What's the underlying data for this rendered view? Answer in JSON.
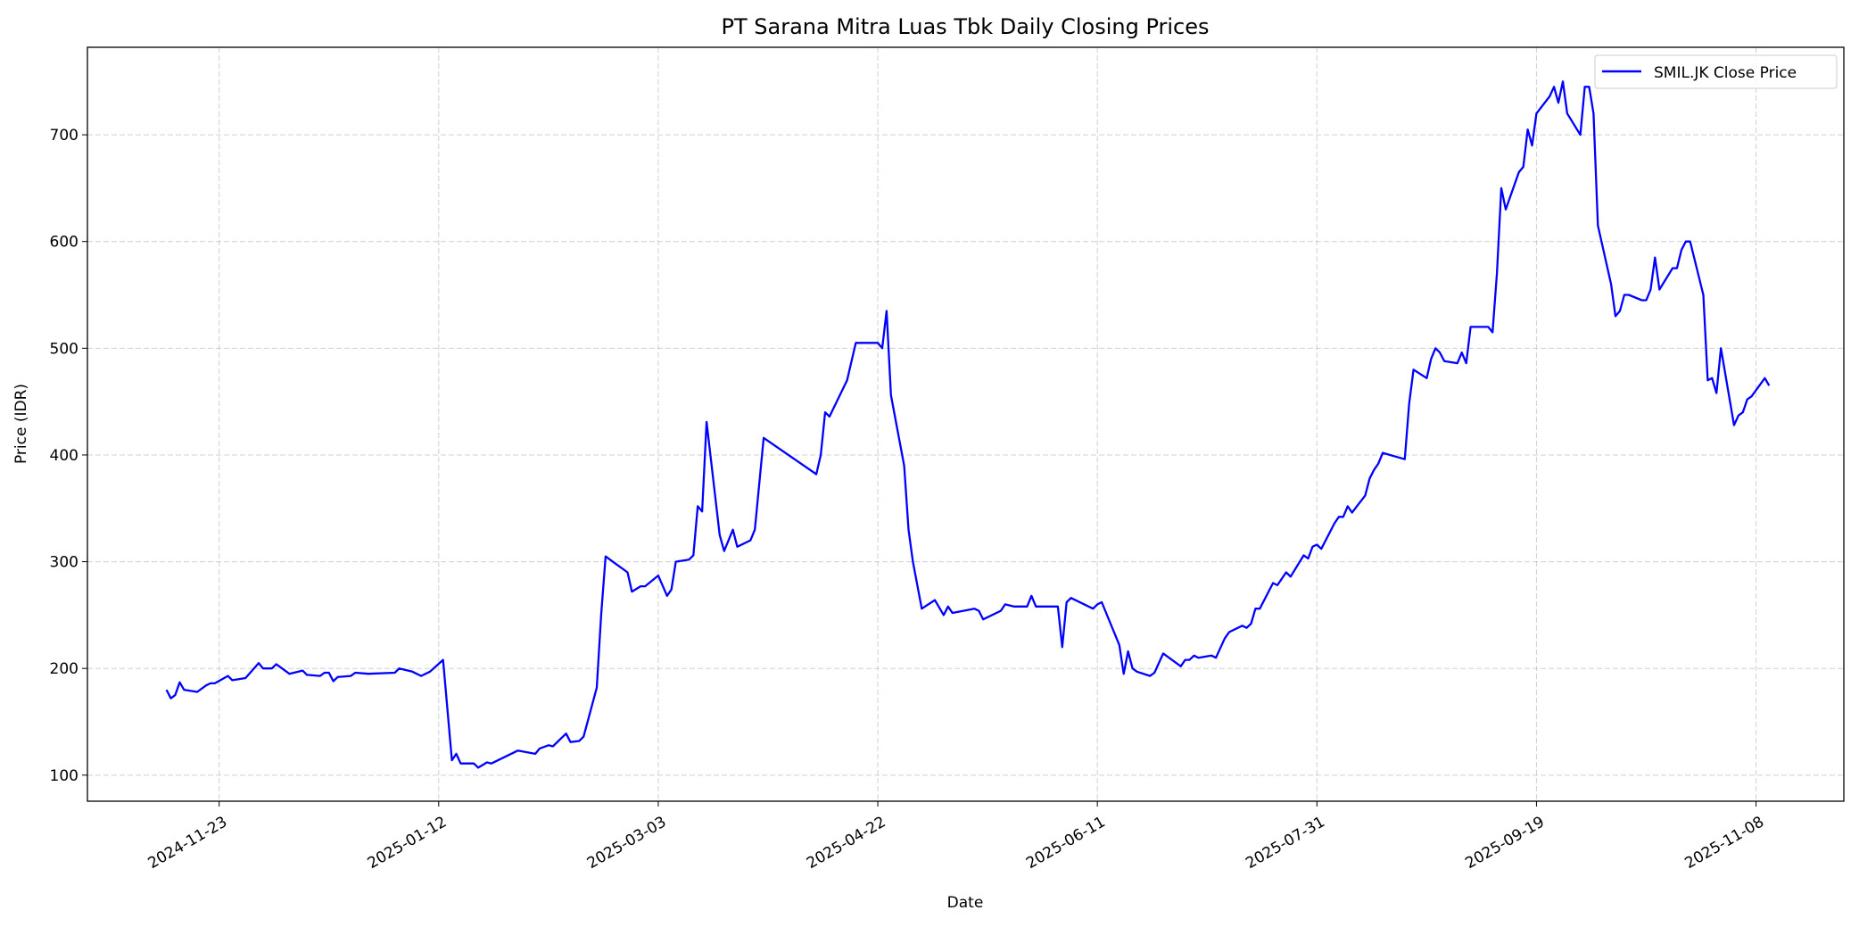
{
  "chart_data": {
    "type": "line",
    "title": "PT Sarana Mitra Luas Tbk Daily Closing Prices",
    "xlabel": "Date",
    "ylabel": "Price (IDR)",
    "xlim": [
      "2024-10-24",
      "2025-11-28"
    ],
    "ylim": [
      75.6,
      782
    ],
    "x_ticks": [
      "2024-11-23",
      "2025-01-12",
      "2025-03-03",
      "2025-04-22",
      "2025-06-11",
      "2025-07-31",
      "2025-09-19",
      "2025-11-08"
    ],
    "y_ticks": [
      100,
      200,
      300,
      400,
      500,
      600,
      700
    ],
    "grid": true,
    "legend_position": "top-right",
    "series": [
      {
        "name": "SMIL.JK Close Price",
        "color": "#0000ff",
        "points": [
          [
            "2024-11-11",
            180
          ],
          [
            "2024-11-12",
            172
          ],
          [
            "2024-11-13",
            175
          ],
          [
            "2024-11-14",
            187
          ],
          [
            "2024-11-15",
            180
          ],
          [
            "2024-11-18",
            178
          ],
          [
            "2024-11-20",
            184
          ],
          [
            "2024-11-21",
            186
          ],
          [
            "2024-11-22",
            186
          ],
          [
            "2024-11-25",
            193
          ],
          [
            "2024-11-26",
            189
          ],
          [
            "2024-11-29",
            191
          ],
          [
            "2024-12-02",
            205
          ],
          [
            "2024-12-03",
            200
          ],
          [
            "2024-12-05",
            200
          ],
          [
            "2024-12-06",
            204
          ],
          [
            "2024-12-09",
            195
          ],
          [
            "2024-12-12",
            198
          ],
          [
            "2024-12-13",
            194
          ],
          [
            "2024-12-16",
            193
          ],
          [
            "2024-12-17",
            196
          ],
          [
            "2024-12-18",
            196
          ],
          [
            "2024-12-19",
            188
          ],
          [
            "2024-12-20",
            192
          ],
          [
            "2024-12-23",
            193
          ],
          [
            "2024-12-24",
            196
          ],
          [
            "2024-12-27",
            195
          ],
          [
            "2025-01-02",
            196
          ],
          [
            "2025-01-03",
            200
          ],
          [
            "2025-01-06",
            197
          ],
          [
            "2025-01-08",
            193
          ],
          [
            "2025-01-10",
            197
          ],
          [
            "2025-01-13",
            208
          ],
          [
            "2025-01-15",
            114
          ],
          [
            "2025-01-16",
            120
          ],
          [
            "2025-01-17",
            111
          ],
          [
            "2025-01-20",
            111
          ],
          [
            "2025-01-21",
            107
          ],
          [
            "2025-01-23",
            112
          ],
          [
            "2025-01-24",
            111
          ],
          [
            "2025-01-30",
            123
          ],
          [
            "2025-02-03",
            120
          ],
          [
            "2025-02-04",
            125
          ],
          [
            "2025-02-06",
            128
          ],
          [
            "2025-02-07",
            127
          ],
          [
            "2025-02-10",
            139
          ],
          [
            "2025-02-11",
            131
          ],
          [
            "2025-02-13",
            132
          ],
          [
            "2025-02-14",
            136
          ],
          [
            "2025-02-17",
            182
          ],
          [
            "2025-02-18",
            250
          ],
          [
            "2025-02-19",
            305
          ],
          [
            "2025-02-21",
            299
          ],
          [
            "2025-02-24",
            290
          ],
          [
            "2025-02-25",
            272
          ],
          [
            "2025-02-27",
            277
          ],
          [
            "2025-02-28",
            277
          ],
          [
            "2025-03-03",
            287
          ],
          [
            "2025-03-05",
            268
          ],
          [
            "2025-03-06",
            274
          ],
          [
            "2025-03-07",
            300
          ],
          [
            "2025-03-10",
            302
          ],
          [
            "2025-03-11",
            306
          ],
          [
            "2025-03-12",
            352
          ],
          [
            "2025-03-13",
            347
          ],
          [
            "2025-03-14",
            431
          ],
          [
            "2025-03-17",
            325
          ],
          [
            "2025-03-18",
            310
          ],
          [
            "2025-03-20",
            330
          ],
          [
            "2025-03-21",
            314
          ],
          [
            "2025-03-24",
            320
          ],
          [
            "2025-03-25",
            330
          ],
          [
            "2025-03-27",
            416
          ],
          [
            "2025-04-08",
            382
          ],
          [
            "2025-04-09",
            400
          ],
          [
            "2025-04-10",
            440
          ],
          [
            "2025-04-11",
            436
          ],
          [
            "2025-04-15",
            470
          ],
          [
            "2025-04-17",
            505
          ],
          [
            "2025-04-22",
            505
          ],
          [
            "2025-04-23",
            500
          ],
          [
            "2025-04-24",
            535
          ],
          [
            "2025-04-25",
            456
          ],
          [
            "2025-04-28",
            390
          ],
          [
            "2025-04-29",
            330
          ],
          [
            "2025-04-30",
            300
          ],
          [
            "2025-05-02",
            256
          ],
          [
            "2025-05-05",
            264
          ],
          [
            "2025-05-07",
            250
          ],
          [
            "2025-05-08",
            258
          ],
          [
            "2025-05-09",
            252
          ],
          [
            "2025-05-14",
            256
          ],
          [
            "2025-05-15",
            254
          ],
          [
            "2025-05-16",
            246
          ],
          [
            "2025-05-20",
            254
          ],
          [
            "2025-05-21",
            260
          ],
          [
            "2025-05-23",
            258
          ],
          [
            "2025-05-26",
            258
          ],
          [
            "2025-05-27",
            268
          ],
          [
            "2025-05-28",
            258
          ],
          [
            "2025-06-02",
            258
          ],
          [
            "2025-06-03",
            220
          ],
          [
            "2025-06-04",
            262
          ],
          [
            "2025-06-05",
            266
          ],
          [
            "2025-06-10",
            256
          ],
          [
            "2025-06-11",
            260
          ],
          [
            "2025-06-12",
            262
          ],
          [
            "2025-06-16",
            222
          ],
          [
            "2025-06-17",
            195
          ],
          [
            "2025-06-18",
            216
          ],
          [
            "2025-06-19",
            200
          ],
          [
            "2025-06-20",
            197
          ],
          [
            "2025-06-23",
            193
          ],
          [
            "2025-06-24",
            196
          ],
          [
            "2025-06-26",
            214
          ],
          [
            "2025-06-30",
            202
          ],
          [
            "2025-07-01",
            208
          ],
          [
            "2025-07-02",
            208
          ],
          [
            "2025-07-03",
            212
          ],
          [
            "2025-07-04",
            210
          ],
          [
            "2025-07-07",
            212
          ],
          [
            "2025-07-08",
            210
          ],
          [
            "2025-07-10",
            228
          ],
          [
            "2025-07-11",
            234
          ],
          [
            "2025-07-14",
            240
          ],
          [
            "2025-07-15",
            238
          ],
          [
            "2025-07-16",
            242
          ],
          [
            "2025-07-17",
            256
          ],
          [
            "2025-07-18",
            256
          ],
          [
            "2025-07-21",
            280
          ],
          [
            "2025-07-22",
            278
          ],
          [
            "2025-07-24",
            290
          ],
          [
            "2025-07-25",
            286
          ],
          [
            "2025-07-28",
            306
          ],
          [
            "2025-07-29",
            303
          ],
          [
            "2025-07-30",
            314
          ],
          [
            "2025-07-31",
            316
          ],
          [
            "2025-08-01",
            312
          ],
          [
            "2025-08-04",
            336
          ],
          [
            "2025-08-05",
            342
          ],
          [
            "2025-08-06",
            342
          ],
          [
            "2025-08-07",
            352
          ],
          [
            "2025-08-08",
            346
          ],
          [
            "2025-08-11",
            362
          ],
          [
            "2025-08-12",
            378
          ],
          [
            "2025-08-13",
            386
          ],
          [
            "2025-08-14",
            392
          ],
          [
            "2025-08-15",
            402
          ],
          [
            "2025-08-20",
            396
          ],
          [
            "2025-08-21",
            448
          ],
          [
            "2025-08-22",
            480
          ],
          [
            "2025-08-25",
            472
          ],
          [
            "2025-08-26",
            490
          ],
          [
            "2025-08-27",
            500
          ],
          [
            "2025-08-28",
            496
          ],
          [
            "2025-08-29",
            488
          ],
          [
            "2025-09-01",
            486
          ],
          [
            "2025-09-02",
            496
          ],
          [
            "2025-09-03",
            486
          ],
          [
            "2025-09-04",
            520
          ],
          [
            "2025-09-08",
            520
          ],
          [
            "2025-09-09",
            515
          ],
          [
            "2025-09-10",
            570
          ],
          [
            "2025-09-11",
            650
          ],
          [
            "2025-09-12",
            630
          ],
          [
            "2025-09-15",
            665
          ],
          [
            "2025-09-16",
            670
          ],
          [
            "2025-09-17",
            705
          ],
          [
            "2025-09-18",
            690
          ],
          [
            "2025-09-19",
            720
          ],
          [
            "2025-09-22",
            736
          ],
          [
            "2025-09-23",
            745
          ],
          [
            "2025-09-24",
            730
          ],
          [
            "2025-09-25",
            750
          ],
          [
            "2025-09-26",
            720
          ],
          [
            "2025-09-29",
            700
          ],
          [
            "2025-09-30",
            745
          ],
          [
            "2025-10-01",
            745
          ],
          [
            "2025-10-02",
            720
          ],
          [
            "2025-10-03",
            615
          ],
          [
            "2025-10-06",
            560
          ],
          [
            "2025-10-07",
            530
          ],
          [
            "2025-10-08",
            535
          ],
          [
            "2025-10-09",
            550
          ],
          [
            "2025-10-10",
            550
          ],
          [
            "2025-10-13",
            545
          ],
          [
            "2025-10-14",
            545
          ],
          [
            "2025-10-15",
            555
          ],
          [
            "2025-10-16",
            585
          ],
          [
            "2025-10-17",
            555
          ],
          [
            "2025-10-20",
            575
          ],
          [
            "2025-10-21",
            575
          ],
          [
            "2025-10-22",
            592
          ],
          [
            "2025-10-23",
            600
          ],
          [
            "2025-10-24",
            600
          ],
          [
            "2025-10-27",
            550
          ],
          [
            "2025-10-28",
            470
          ],
          [
            "2025-10-29",
            472
          ],
          [
            "2025-10-30",
            458
          ],
          [
            "2025-10-31",
            500
          ],
          [
            "2025-11-03",
            428
          ],
          [
            "2025-11-04",
            437
          ],
          [
            "2025-11-05",
            440
          ],
          [
            "2025-11-06",
            452
          ],
          [
            "2025-11-07",
            455
          ],
          [
            "2025-11-10",
            472
          ],
          [
            "2025-11-11",
            465
          ]
        ]
      }
    ]
  }
}
